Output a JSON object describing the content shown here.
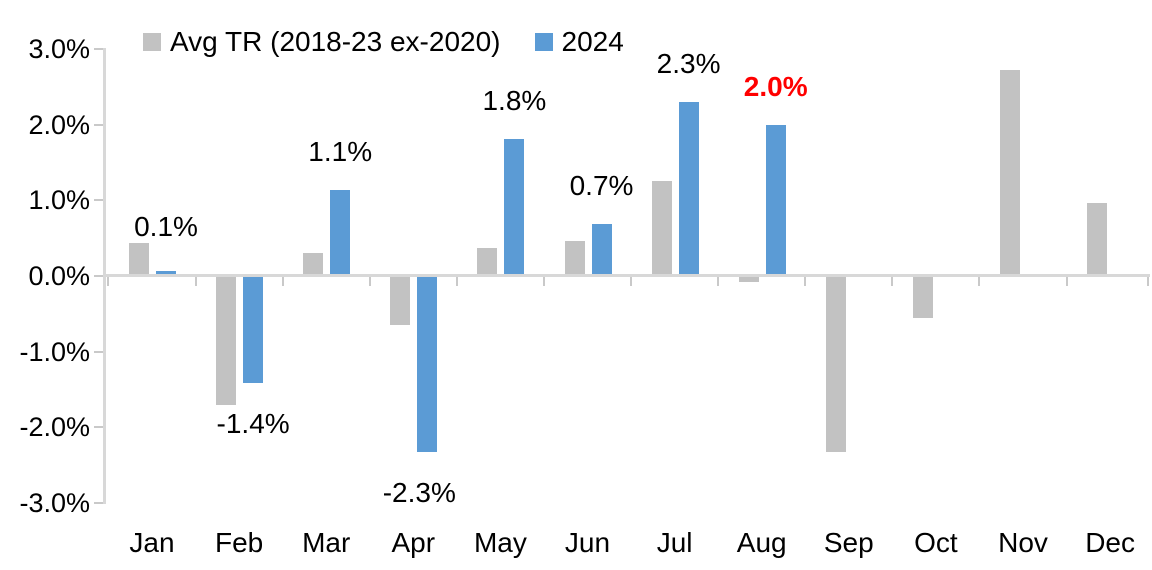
{
  "chart_data": {
    "type": "bar",
    "title": "",
    "categories": [
      "Jan",
      "Feb",
      "Mar",
      "Apr",
      "May",
      "Jun",
      "Jul",
      "Aug",
      "Sep",
      "Oct",
      "Nov",
      "Dec"
    ],
    "series": [
      {
        "name": "Avg TR (2018-23 ex-2020)",
        "color": "#c2c2c2",
        "values": [
          0.43,
          -1.7,
          0.3,
          -0.65,
          0.37,
          0.46,
          1.25,
          -0.08,
          -2.33,
          -0.55,
          2.72,
          0.97
        ]
      },
      {
        "name": "2024",
        "color": "#5b9bd5",
        "values": [
          0.06,
          -1.42,
          1.13,
          -2.33,
          1.81,
          0.69,
          2.3,
          2.0,
          null,
          null,
          null,
          null
        ]
      }
    ],
    "data_labels": {
      "series": "2024",
      "texts": [
        "0.1%",
        "-1.4%",
        "1.1%",
        "-2.3%",
        "1.8%",
        "0.7%",
        "2.3%",
        "2.0%"
      ],
      "highlight_index": 7,
      "highlight_color": "#ff0000",
      "default_color": "#000000"
    },
    "ylim": [
      -3,
      3
    ],
    "ytick_values": [
      3,
      2,
      1,
      0,
      -1,
      -2,
      -3
    ],
    "ytick_labels": [
      "3.0%",
      "2.0%",
      "1.0%",
      "0.0%",
      "-1.0%",
      "-2.0%",
      "-3.0%"
    ],
    "xlabel": "",
    "ylabel": "",
    "grid": false,
    "legend_position": "top"
  }
}
